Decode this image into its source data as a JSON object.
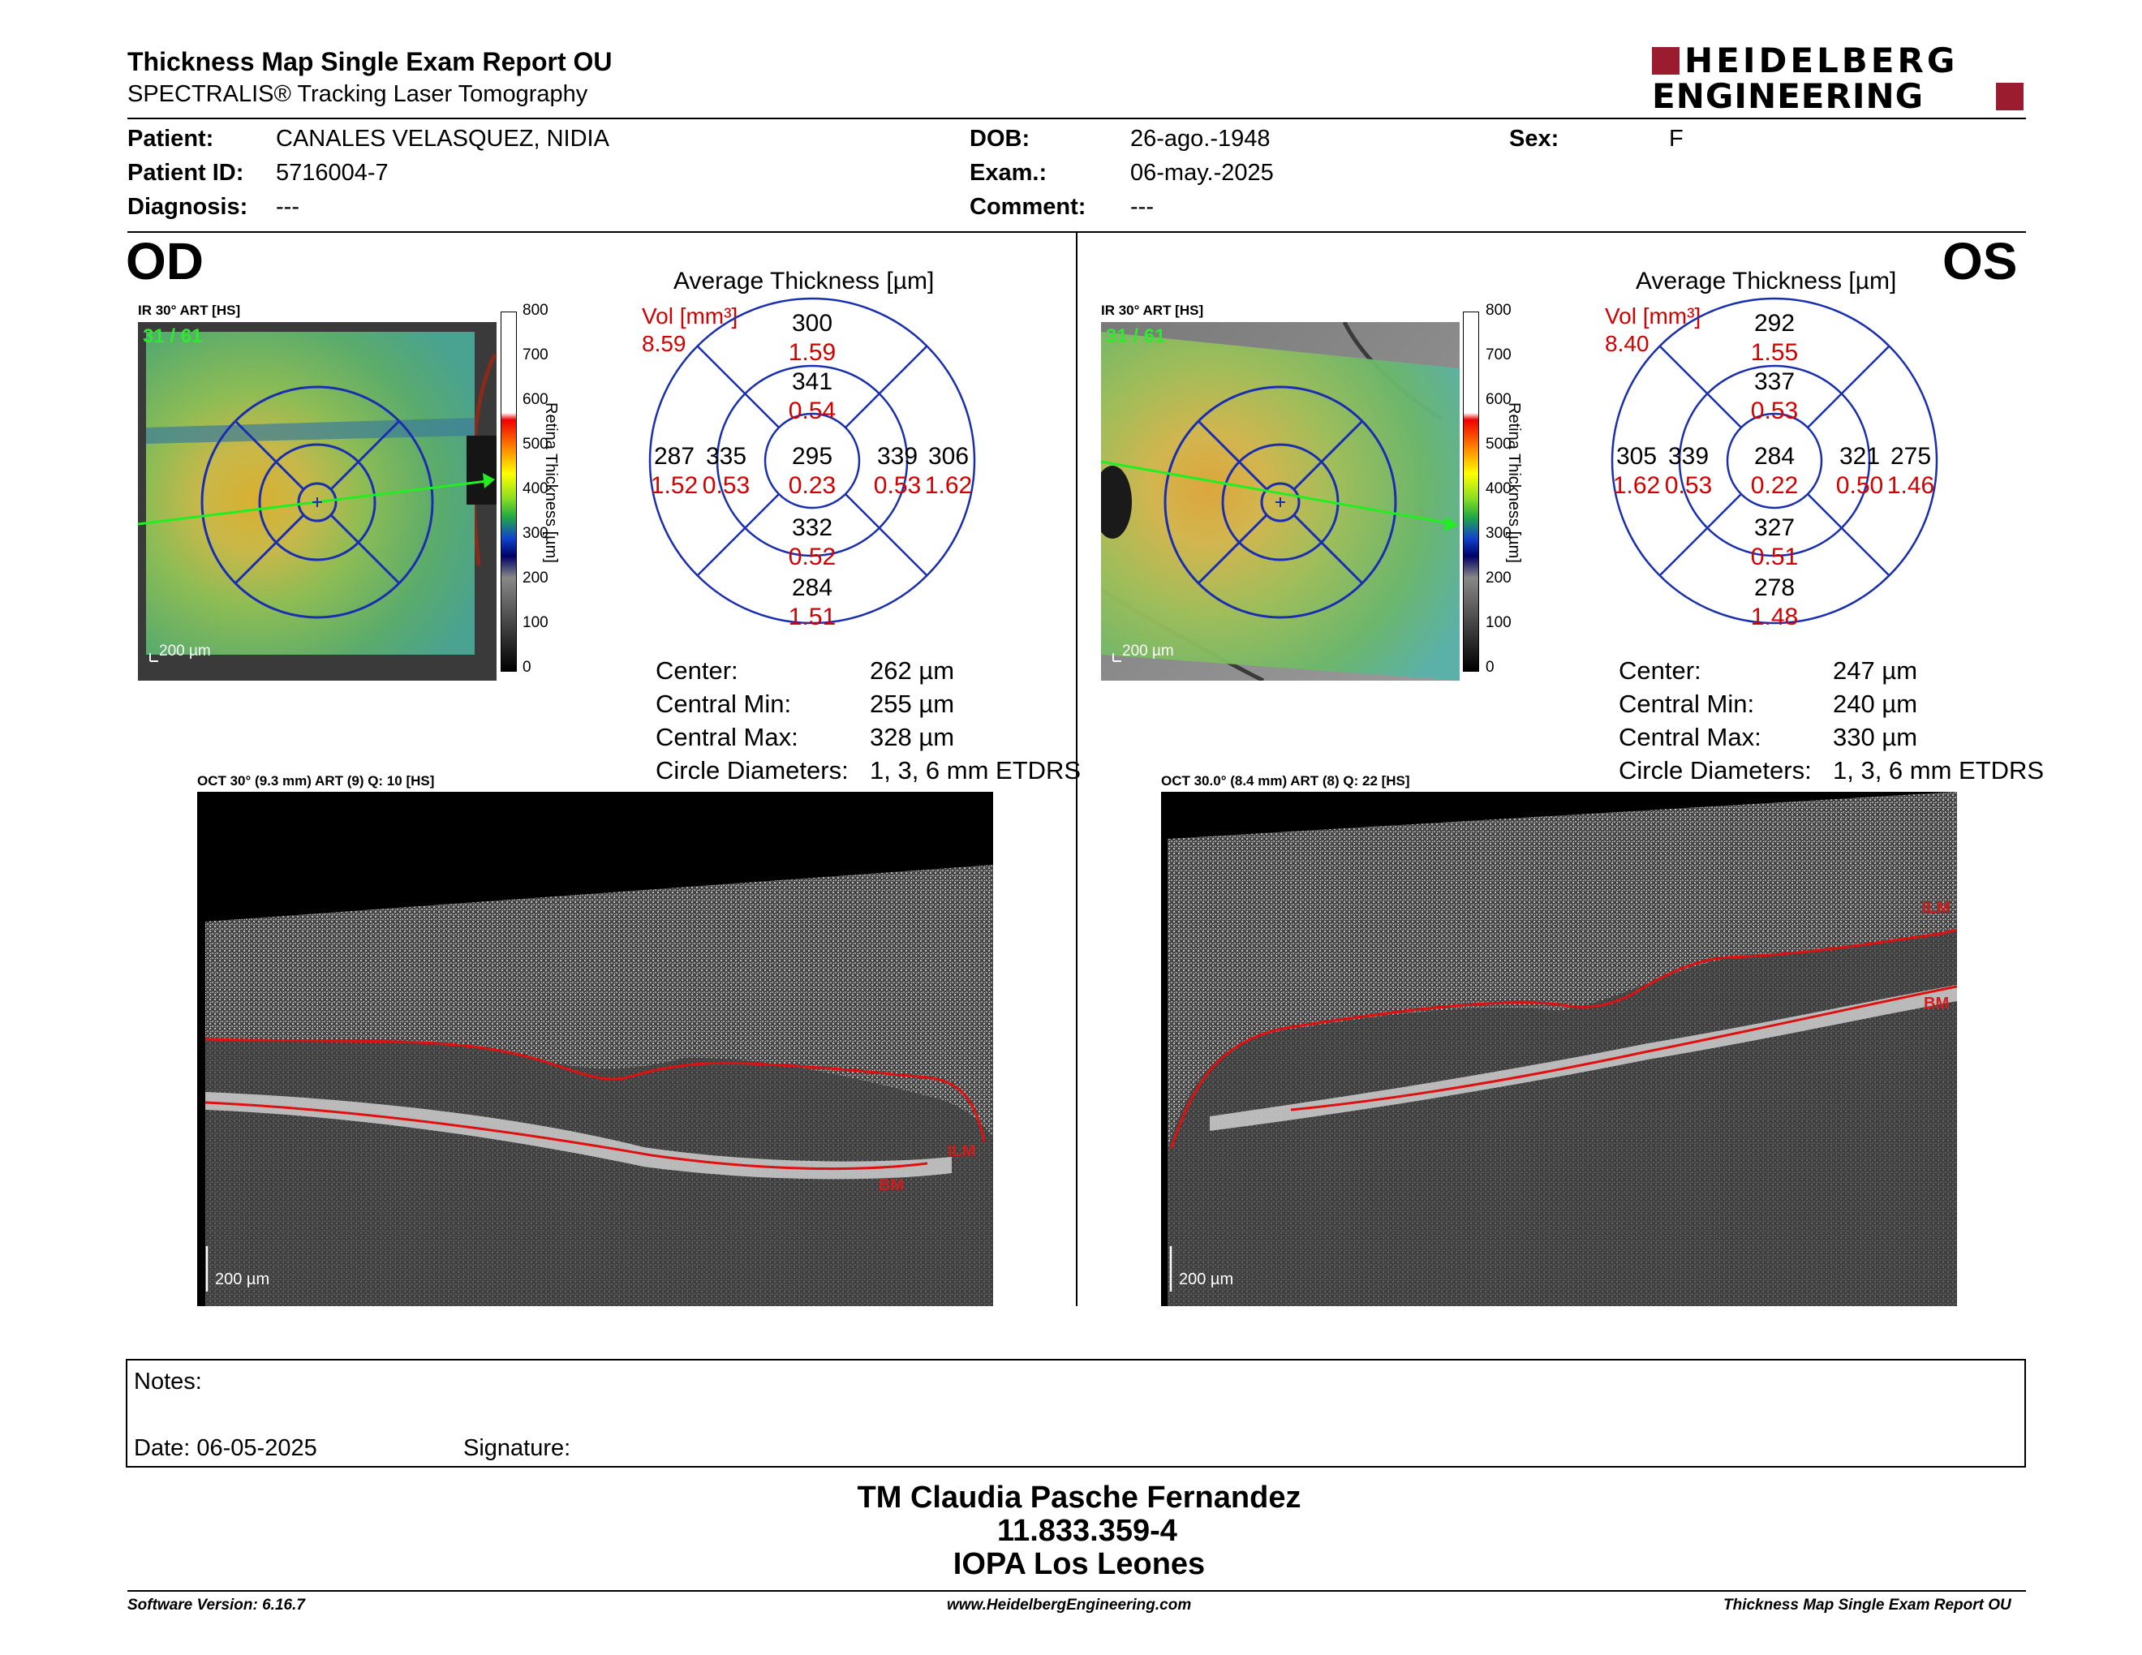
{
  "header": {
    "title": "Thickness Map Single Exam Report OU",
    "subtitle": "SPECTRALIS® Tracking Laser Tomography",
    "logo_line1": "HEIDELBERG",
    "logo_line2": "ENGINEERING"
  },
  "patient": {
    "patient_label": "Patient:",
    "patient_value": "CANALES VELASQUEZ, NIDIA",
    "id_label": "Patient ID:",
    "id_value": "5716004-7",
    "diag_label": "Diagnosis:",
    "diag_value": "---",
    "dob_label": "DOB:",
    "dob_value": "26-ago.-1948",
    "exam_label": "Exam.:",
    "exam_value": "06-may.-2025",
    "comment_label": "Comment:",
    "comment_value": "---",
    "sex_label": "Sex:",
    "sex_value": "F"
  },
  "od": {
    "eye": "OD",
    "ir_label": "IR 30° ART [HS]",
    "frame": "31 / 61",
    "scale": "200 µm",
    "colorbar_ticks": [
      "800",
      "700",
      "600",
      "500",
      "400",
      "300",
      "200",
      "100",
      "0"
    ],
    "colorbar_label": "Retina Thickness [µm]",
    "avg_title": "Average Thickness [µm]",
    "vol_label": "Vol [mm³]",
    "vol_value": "8.59",
    "sectors": {
      "outer_top": [
        "300",
        "1.59"
      ],
      "inner_top": [
        "341",
        "0.54"
      ],
      "outer_left": [
        "287",
        "1.52"
      ],
      "inner_left": [
        "335",
        "0.53"
      ],
      "center": [
        "295",
        "0.23"
      ],
      "inner_right": [
        "339",
        "0.53"
      ],
      "outer_right": [
        "306",
        "1.62"
      ],
      "inner_bottom": [
        "332",
        "0.52"
      ],
      "outer_bottom": [
        "284",
        "1.51"
      ]
    },
    "center_label": "Center:",
    "center_value": "262 µm",
    "cmin_label": "Central Min:",
    "cmin_value": "255 µm",
    "cmax_label": "Central Max:",
    "cmax_value": "328 µm",
    "circ_label": "Circle Diameters:",
    "circ_value": "1, 3, 6 mm ETDRS",
    "oct_label": "OCT 30° (9.3 mm) ART (9) Q: 10 [HS]",
    "ilm": "ILM",
    "bm": "BM",
    "oct_scale": "200 µm"
  },
  "os": {
    "eye": "OS",
    "ir_label": "IR 30° ART [HS]",
    "frame": "31 / 61",
    "scale": "200 µm",
    "colorbar_ticks": [
      "800",
      "700",
      "600",
      "500",
      "400",
      "300",
      "200",
      "100",
      "0"
    ],
    "colorbar_label": "Retina Thickness [µm]",
    "avg_title": "Average Thickness [µm]",
    "vol_label": "Vol [mm³]",
    "vol_value": "8.40",
    "sectors": {
      "outer_top": [
        "292",
        "1.55"
      ],
      "inner_top": [
        "337",
        "0.53"
      ],
      "outer_left": [
        "305",
        "1.62"
      ],
      "inner_left": [
        "339",
        "0.53"
      ],
      "center": [
        "284",
        "0.22"
      ],
      "inner_right": [
        "321",
        "0.50"
      ],
      "outer_right": [
        "275",
        "1.46"
      ],
      "inner_bottom": [
        "327",
        "0.51"
      ],
      "outer_bottom": [
        "278",
        "1.48"
      ]
    },
    "center_label": "Center:",
    "center_value": "247 µm",
    "cmin_label": "Central Min:",
    "cmin_value": "240 µm",
    "cmax_label": "Central Max:",
    "cmax_value": "330 µm",
    "circ_label": "Circle Diameters:",
    "circ_value": "1, 3, 6 mm ETDRS",
    "oct_label": "OCT 30.0° (8.4 mm) ART (8) Q: 22 [HS]",
    "ilm": "ILM",
    "bm": "BM",
    "oct_scale": "200 µm"
  },
  "notes": {
    "notes_label": "Notes:",
    "date_label": "Date: 06-05-2025",
    "signature_label": "Signature:"
  },
  "signature_block": {
    "line1": "TM Claudia Pasche Fernandez",
    "line2": "11.833.359-4",
    "line3": "IOPA Los Leones"
  },
  "footer": {
    "left": "Software Version: 6.16.7",
    "center": "www.HeidelbergEngineering.com",
    "right": "Thickness Map Single Exam Report OU"
  },
  "colors": {
    "accent_red": "#d40000",
    "logo_red": "#9b1c2e",
    "grid_blue": "#1a2fb0"
  }
}
